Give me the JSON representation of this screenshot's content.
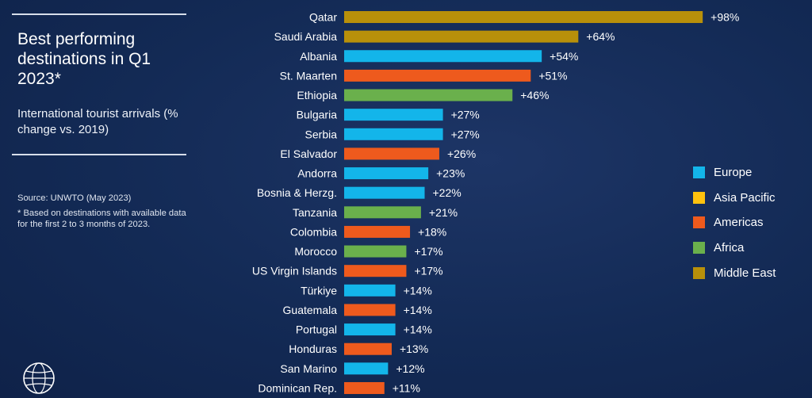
{
  "title": "Best performing destinations in Q1 2023*",
  "subtitle": "International tourist arrivals (% change vs. 2019)",
  "source": "Source: UNWTO (May 2023)",
  "footnote": "*  Based on destinations with available data for the first 2 to 3 months of 2023.",
  "colors": {
    "Europe": "#13b5ea",
    "Asia Pacific": "#ffc20e",
    "Americas": "#ee5a1d",
    "Africa": "#6ab04c",
    "Middle East": "#b8900a"
  },
  "chart_data": {
    "type": "bar",
    "orientation": "horizontal",
    "title": "Best performing destinations in Q1 2023*",
    "subtitle": "International tourist arrivals (% change vs. 2019)",
    "xlim": [
      0,
      100
    ],
    "grid": false,
    "legend_position": "right",
    "legend": [
      "Europe",
      "Asia Pacific",
      "Americas",
      "Africa",
      "Middle East"
    ],
    "categories": [
      "Qatar",
      "Saudi Arabia",
      "Albania",
      "St. Maarten",
      "Ethiopia",
      "Bulgaria",
      "Serbia",
      "El Salvador",
      "Andorra",
      "Bosnia & Herzg.",
      "Tanzania",
      "Colombia",
      "Morocco",
      "US Virgin Islands",
      "Türkiye",
      "Guatemala",
      "Portugal",
      "Honduras",
      "San Marino",
      "Dominican Rep."
    ],
    "values": [
      98,
      64,
      54,
      51,
      46,
      27,
      27,
      26,
      23,
      22,
      21,
      18,
      17,
      17,
      14,
      14,
      14,
      13,
      12,
      11
    ],
    "value_labels": [
      "+98%",
      "+64%",
      "+54%",
      "+51%",
      "+46%",
      "+27%",
      "+27%",
      "+26%",
      "+23%",
      "+22%",
      "+21%",
      "+18%",
      "+17%",
      "+17%",
      "+14%",
      "+14%",
      "+14%",
      "+13%",
      "+12%",
      "+11%"
    ],
    "regions": [
      "Middle East",
      "Middle East",
      "Europe",
      "Americas",
      "Africa",
      "Europe",
      "Europe",
      "Americas",
      "Europe",
      "Europe",
      "Africa",
      "Americas",
      "Africa",
      "Americas",
      "Europe",
      "Americas",
      "Europe",
      "Americas",
      "Europe",
      "Americas"
    ]
  }
}
